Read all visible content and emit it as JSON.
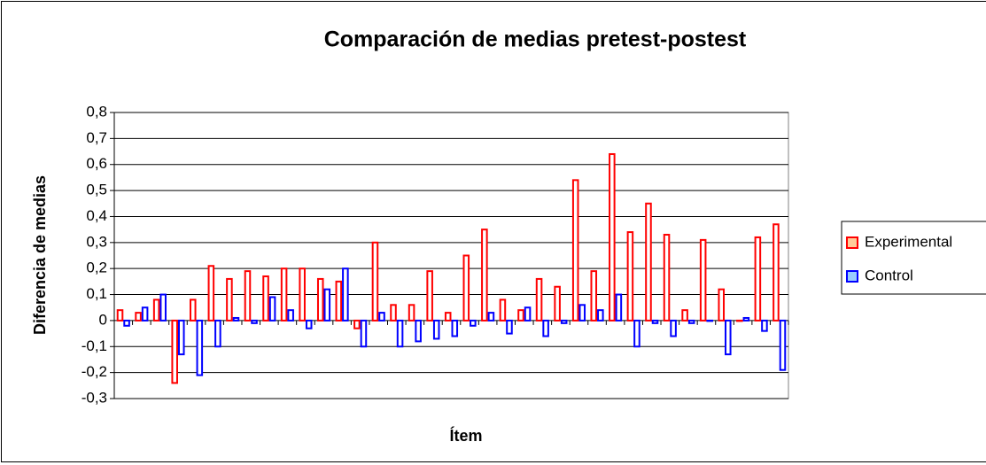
{
  "chart_data": {
    "type": "bar",
    "title": "Comparación de medias pretest-postest",
    "x_label": "Ítem",
    "y_label": "Diferencia de medias",
    "categories": [
      null,
      null,
      null,
      null,
      null,
      null,
      null,
      null,
      null,
      null,
      null,
      null,
      null,
      null,
      null,
      null,
      null,
      null,
      null,
      null,
      null,
      null,
      null,
      null,
      null,
      null,
      null,
      null,
      null,
      null,
      null,
      null,
      null,
      null,
      null,
      null,
      null
    ],
    "series": [
      {
        "name": "Experimental",
        "color": "#ff0000",
        "values": [
          0.04,
          0.03,
          0.08,
          -0.24,
          0.08,
          0.21,
          0.16,
          0.19,
          0.17,
          0.2,
          0.2,
          0.16,
          0.15,
          -0.03,
          0.3,
          0.06,
          0.06,
          0.19,
          0.03,
          0.25,
          0.35,
          0.08,
          0.04,
          0.16,
          0.13,
          0.54,
          0.19,
          0.64,
          0.34,
          0.45,
          0.33,
          0.04,
          0.31,
          0.12,
          0,
          0.32,
          0.37
        ]
      },
      {
        "name": "Control",
        "color": "#0000ff",
        "values": [
          -0.02,
          0.05,
          0.1,
          -0.13,
          -0.21,
          -0.1,
          0.01,
          -0.01,
          0.09,
          0.04,
          -0.03,
          0.12,
          0.2,
          -0.1,
          0.03,
          -0.1,
          -0.08,
          -0.07,
          -0.06,
          -0.02,
          0.03,
          -0.05,
          0.05,
          -0.06,
          -0.01,
          0.06,
          0.04,
          0.1,
          -0.1,
          -0.01,
          -0.06,
          -0.01,
          0,
          -0.13,
          0.01,
          -0.04,
          -0.19
        ]
      }
    ],
    "ylim": [
      -0.3,
      0.8
    ],
    "yticks": [
      {
        "value": -0.3,
        "label": "-0,3"
      },
      {
        "value": -0.2,
        "label": "-0,2"
      },
      {
        "value": -0.1,
        "label": "-0,1"
      },
      0,
      {
        "value": 0.1,
        "label": "0,1"
      },
      {
        "value": 0.2,
        "label": "0,2"
      },
      {
        "value": 0.3,
        "label": "0,3"
      },
      {
        "value": 0.4,
        "label": "0,4"
      },
      {
        "value": 0.5,
        "label": "0,5"
      },
      {
        "value": 0.6,
        "label": "0,6"
      },
      {
        "value": 0.7,
        "label": "0,7"
      },
      {
        "value": 0.8,
        "label": "0,8"
      }
    ],
    "grid": true,
    "legend": "right"
  }
}
